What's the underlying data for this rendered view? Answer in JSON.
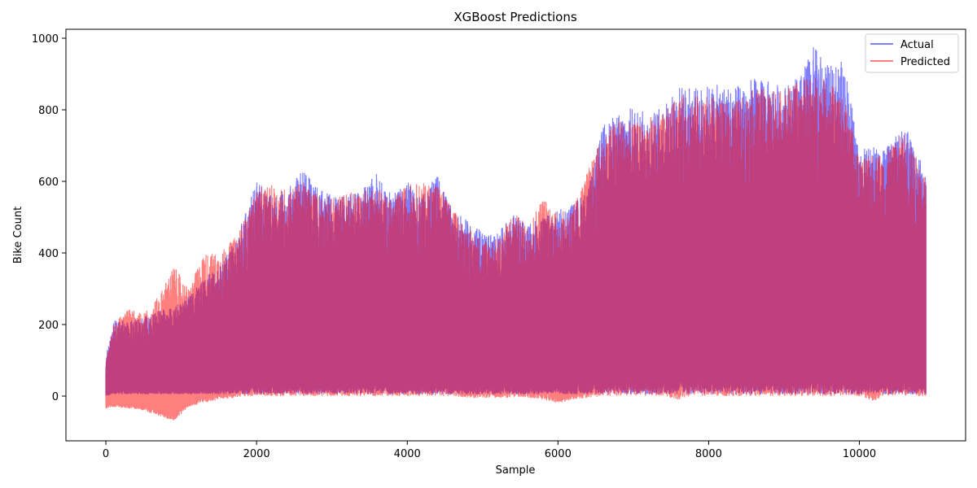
{
  "chart_data": {
    "type": "line",
    "title": "XGBoost Predictions",
    "xlabel": "Sample",
    "ylabel": "Bike Count",
    "xlim": [
      -530,
      11410
    ],
    "ylim": [
      -125,
      1025
    ],
    "xticks": [
      0,
      2000,
      4000,
      6000,
      8000,
      10000
    ],
    "xtick_labels": [
      "0",
      "2000",
      "4000",
      "6000",
      "8000",
      "10000"
    ],
    "yticks": [
      0,
      200,
      400,
      600,
      800,
      1000
    ],
    "ytick_labels": [
      "0",
      "200",
      "400",
      "600",
      "800",
      "1000"
    ],
    "grid": false,
    "legend": {
      "position": "top-right"
    },
    "n_samples": 10886,
    "series": [
      {
        "name": "Actual",
        "color": "#0000ff",
        "opacity": 0.5,
        "x": [
          0,
          100,
          300,
          500,
          700,
          900,
          1100,
          1300,
          1500,
          1700,
          1900,
          2000,
          2200,
          2400,
          2600,
          2800,
          3000,
          3200,
          3400,
          3600,
          3800,
          4000,
          4200,
          4400,
          4600,
          4800,
          5000,
          5200,
          5400,
          5600,
          5800,
          6000,
          6200,
          6400,
          6600,
          6800,
          7000,
          7200,
          7400,
          7600,
          7800,
          8000,
          8200,
          8400,
          8600,
          8800,
          9000,
          9200,
          9400,
          9600,
          9800,
          10000,
          10200,
          10400,
          10600,
          10800,
          10886
        ],
        "upper": [
          110,
          215,
          210,
          220,
          240,
          250,
          280,
          330,
          360,
          430,
          540,
          610,
          560,
          580,
          638,
          590,
          560,
          570,
          575,
          628,
          560,
          600,
          560,
          620,
          520,
          490,
          460,
          455,
          510,
          480,
          500,
          520,
          540,
          580,
          760,
          790,
          810,
          790,
          810,
          870,
          860,
          870,
          870,
          870,
          890,
          880,
          870,
          890,
          980,
          920,
          940,
          690,
          700,
          700,
          760,
          670,
          610
        ],
        "lower": [
          0,
          5,
          5,
          5,
          5,
          5,
          5,
          5,
          5,
          5,
          5,
          5,
          5,
          5,
          5,
          5,
          5,
          5,
          5,
          5,
          5,
          5,
          5,
          5,
          5,
          5,
          5,
          5,
          5,
          5,
          5,
          5,
          5,
          5,
          5,
          5,
          5,
          5,
          5,
          5,
          5,
          5,
          5,
          5,
          5,
          5,
          5,
          5,
          5,
          5,
          5,
          5,
          5,
          5,
          5,
          5,
          5
        ]
      },
      {
        "name": "Predicted",
        "color": "#ff0000",
        "opacity": 0.5,
        "x": [
          0,
          100,
          300,
          500,
          700,
          900,
          1100,
          1300,
          1500,
          1700,
          1900,
          2000,
          2200,
          2400,
          2600,
          2800,
          3000,
          3200,
          3400,
          3600,
          3800,
          4000,
          4200,
          4400,
          4600,
          4800,
          5000,
          5200,
          5400,
          5600,
          5800,
          6000,
          6200,
          6400,
          6600,
          6800,
          7000,
          7200,
          7400,
          7600,
          7800,
          8000,
          8200,
          8400,
          8600,
          8800,
          9000,
          9200,
          9400,
          9600,
          9800,
          10000,
          10200,
          10400,
          10600,
          10800,
          10886
        ],
        "upper": [
          100,
          200,
          245,
          230,
          280,
          365,
          300,
          400,
          400,
          440,
          520,
          580,
          590,
          580,
          600,
          570,
          555,
          570,
          575,
          590,
          545,
          595,
          595,
          600,
          525,
          470,
          440,
          440,
          515,
          480,
          560,
          510,
          530,
          635,
          730,
          780,
          760,
          780,
          790,
          840,
          840,
          840,
          820,
          830,
          860,
          860,
          860,
          880,
          900,
          880,
          840,
          660,
          680,
          690,
          740,
          650,
          620
        ],
        "lower": [
          -35,
          -30,
          -35,
          -40,
          -55,
          -70,
          -30,
          -20,
          -10,
          -5,
          0,
          0,
          0,
          0,
          0,
          0,
          0,
          0,
          0,
          0,
          0,
          0,
          0,
          0,
          0,
          -5,
          -5,
          -5,
          -5,
          -5,
          -10,
          -20,
          -10,
          -5,
          0,
          0,
          0,
          0,
          0,
          -10,
          0,
          0,
          0,
          0,
          0,
          0,
          0,
          0,
          0,
          0,
          0,
          0,
          -15,
          0,
          0,
          0,
          0
        ]
      }
    ]
  }
}
